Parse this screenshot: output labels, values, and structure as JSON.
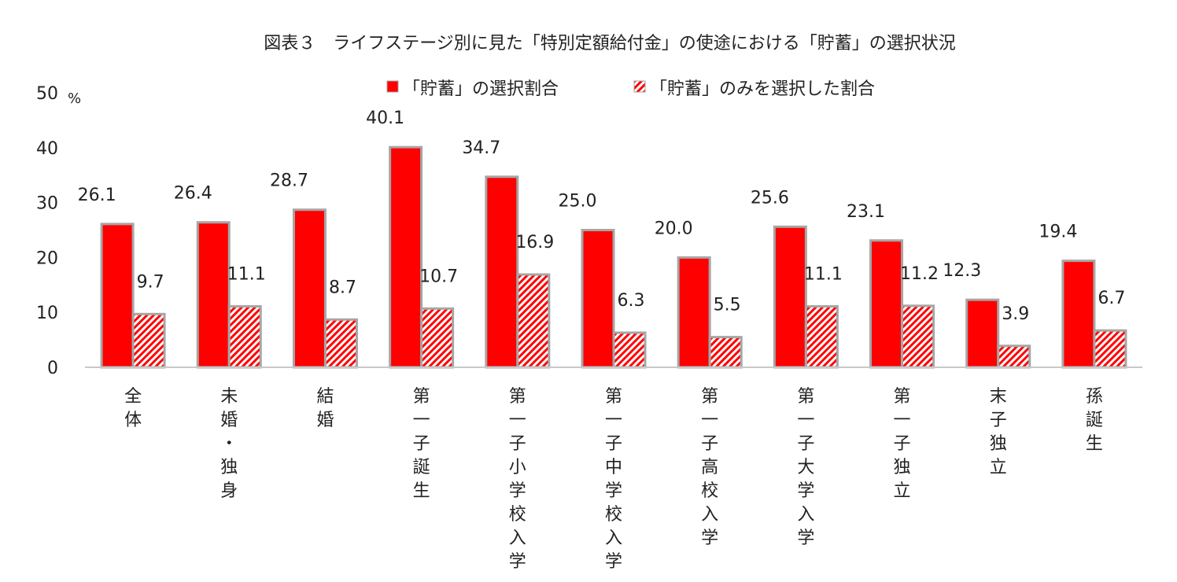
{
  "chart_data": {
    "type": "bar",
    "title": "図表３　ライフステージ別に見た「特別定額給付金」の使途における「貯蓄」の選択状況",
    "ylabel": "%",
    "ylim": [
      0,
      50
    ],
    "yticks": [
      0,
      10,
      20,
      30,
      40,
      50
    ],
    "grid": false,
    "legend_position": "top",
    "categories": [
      "全体",
      "未婚・独身",
      "結婚",
      "第一子誕生",
      "第一子小学校入学",
      "第一子中学校入学",
      "第一子高校入学",
      "第一子大学入学",
      "第一子独立",
      "末子独立",
      "孫誕生"
    ],
    "series": [
      {
        "name": "「貯蓄」の選択割合",
        "color": "#ff0000",
        "pattern": "solid",
        "values": [
          26.1,
          26.4,
          28.7,
          40.1,
          34.7,
          25.0,
          20.0,
          25.6,
          23.1,
          12.3,
          19.4
        ],
        "labels": [
          "26.1",
          "26.4",
          "28.7",
          "40.1",
          "34.7",
          "25.0",
          "20.0",
          "25.6",
          "23.1",
          "12.3",
          "19.4"
        ]
      },
      {
        "name": "「貯蓄」のみを選択した割合",
        "color": "#ff0000",
        "pattern": "diagonal-hatch",
        "values": [
          9.7,
          11.1,
          8.7,
          10.7,
          16.9,
          6.3,
          5.5,
          11.1,
          11.2,
          3.9,
          6.7
        ],
        "labels": [
          "9.7",
          "11.1",
          "8.7",
          "10.7",
          "16.9",
          "6.3",
          "5.5",
          "11.1",
          "11.2",
          "3.9",
          "6.7"
        ]
      }
    ]
  }
}
